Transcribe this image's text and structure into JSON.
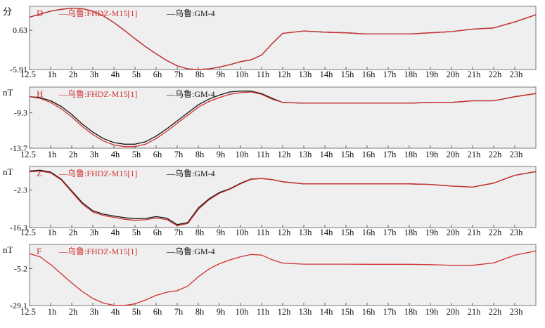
{
  "panels": [
    {
      "unit": "分",
      "component": "D",
      "legend": [
        {
          "prefix": "—",
          "text": "乌鲁:FHDZ-M15[1]",
          "color": "#d03030"
        },
        {
          "prefix": "—",
          "text": "乌鲁:GM-4",
          "color": "#111111"
        }
      ]
    },
    {
      "unit": "nT",
      "component": "H",
      "legend": [
        {
          "prefix": "—",
          "text": "乌鲁:FHDZ-M15[1]",
          "color": "#d03030"
        },
        {
          "prefix": "—",
          "text": "乌鲁:GM-4",
          "color": "#111111"
        }
      ]
    },
    {
      "unit": "nT",
      "component": "Z",
      "legend": [
        {
          "prefix": "—",
          "text": "乌鲁:FHDZ-M15[1]",
          "color": "#d03030"
        },
        {
          "prefix": "—",
          "text": "乌鲁:GM-4",
          "color": "#111111"
        }
      ]
    },
    {
      "unit": "nT",
      "component": "F",
      "legend": [
        {
          "prefix": "—",
          "text": "乌鲁:FHDZ-M15[1]",
          "color": "#d03030"
        },
        {
          "prefix": "—",
          "text": "乌鲁:GM-4",
          "color": "#111111"
        }
      ]
    }
  ],
  "chart_data": [
    {
      "type": "line",
      "title": "",
      "xlabel": "",
      "ylabel": "分",
      "x_ticks": [
        "12.5",
        "1h",
        "2h",
        "3h",
        "4h",
        "5h",
        "6h",
        "7h",
        "8h",
        "9h",
        "10h",
        "11h",
        "12h",
        "13h",
        "14h",
        "15h",
        "16h",
        "17h",
        "18h",
        "19h",
        "20h",
        "21h",
        "22h",
        "23h"
      ],
      "xlim": [
        0,
        24
      ],
      "y_ticks": [
        0.63,
        -5.91
      ],
      "ylim": [
        -5.91,
        4.6
      ],
      "grid": false,
      "legend_position": "top-left",
      "colors": {
        "red": "#d03030",
        "black": "#111111"
      },
      "series": [
        {
          "name": "乌鲁:FHDZ-M15[1]",
          "color": "#d03030",
          "x": [
            0,
            0.5,
            1,
            1.5,
            2,
            2.5,
            3,
            3.5,
            4,
            4.5,
            5,
            5.5,
            6,
            6.5,
            7,
            7.5,
            8,
            8.5,
            9,
            9.5,
            10,
            10.5,
            11,
            11.5,
            12,
            13,
            14,
            15,
            16,
            17,
            18,
            19,
            20,
            21,
            22,
            23,
            24
          ],
          "y": [
            2.8,
            3.3,
            3.8,
            4.1,
            4.3,
            4.2,
            3.8,
            3.0,
            1.9,
            0.6,
            -0.8,
            -2.1,
            -3.3,
            -4.4,
            -5.3,
            -5.8,
            -5.9,
            -5.8,
            -5.5,
            -5.1,
            -4.6,
            -4.3,
            -3.5,
            -1.6,
            0.1,
            0.5,
            0.3,
            0.2,
            0.0,
            0.0,
            0.0,
            0.2,
            0.4,
            0.8,
            1.0,
            2.0,
            3.2
          ]
        },
        {
          "name": "乌鲁:GM-4",
          "color": "#111111",
          "x": [
            0,
            0.5,
            1,
            1.5,
            2,
            2.5,
            3,
            3.5,
            4,
            4.5,
            5,
            5.5,
            6,
            6.5,
            7,
            7.5,
            8,
            8.5,
            9,
            9.5,
            10,
            10.5,
            11,
            11.5,
            12,
            13,
            14,
            15,
            16,
            17,
            18,
            19,
            20,
            21,
            22,
            23,
            24
          ],
          "y": [
            2.8,
            3.3,
            3.8,
            4.1,
            4.3,
            4.2,
            3.8,
            3.0,
            1.9,
            0.6,
            -0.8,
            -2.1,
            -3.3,
            -4.4,
            -5.3,
            -5.8,
            -5.9,
            -5.8,
            -5.5,
            -5.1,
            -4.6,
            -4.3,
            -3.5,
            -1.6,
            0.1,
            0.5,
            0.3,
            0.2,
            0.0,
            0.0,
            0.0,
            0.2,
            0.4,
            0.8,
            1.0,
            2.0,
            3.2
          ]
        }
      ]
    },
    {
      "type": "line",
      "title": "",
      "xlabel": "",
      "ylabel": "nT",
      "x_ticks": [
        "12.5",
        "1h",
        "2h",
        "3h",
        "4h",
        "5h",
        "6h",
        "7h",
        "8h",
        "9h",
        "10h",
        "11h",
        "12h",
        "13h",
        "14h",
        "15h",
        "16h",
        "17h",
        "18h",
        "19h",
        "20h",
        "21h",
        "22h",
        "23h"
      ],
      "xlim": [
        0,
        24
      ],
      "y_ticks": [
        -9.3,
        -13.7
      ],
      "ylim": [
        -13.7,
        -6.1
      ],
      "grid": false,
      "legend_position": "top-left",
      "colors": {
        "red": "#d03030",
        "black": "#111111"
      },
      "series": [
        {
          "name": "乌鲁:FHDZ-M15[1]",
          "color": "#d03030",
          "x": [
            0,
            0.5,
            1,
            1.5,
            2,
            2.5,
            3,
            3.5,
            4,
            4.5,
            5,
            5.5,
            6,
            6.5,
            7,
            7.5,
            8,
            8.5,
            9,
            9.5,
            10,
            10.5,
            11,
            11.5,
            12,
            13,
            14,
            15,
            16,
            17,
            18,
            19,
            20,
            21,
            22,
            23,
            24
          ],
          "y": [
            -7.3,
            -7.5,
            -8.0,
            -8.8,
            -9.8,
            -11.0,
            -12.0,
            -12.8,
            -13.3,
            -13.5,
            -13.5,
            -13.2,
            -12.5,
            -11.6,
            -10.6,
            -9.6,
            -8.6,
            -7.9,
            -7.4,
            -7.0,
            -6.8,
            -6.7,
            -7.0,
            -7.6,
            -8.0,
            -8.1,
            -8.1,
            -8.1,
            -8.1,
            -8.1,
            -8.1,
            -8.0,
            -8.0,
            -7.8,
            -7.8,
            -7.3,
            -6.9
          ]
        },
        {
          "name": "乌鲁:GM-4",
          "color": "#111111",
          "x": [
            0,
            0.5,
            1,
            1.5,
            2,
            2.5,
            3,
            3.5,
            4,
            4.5,
            5,
            5.5,
            6,
            6.5,
            7,
            7.5,
            8,
            8.5,
            9,
            9.5,
            10,
            10.5,
            11,
            11.5,
            12,
            13,
            14,
            15,
            16,
            17,
            18,
            19,
            20,
            21,
            22,
            23,
            24
          ],
          "y": [
            -7.3,
            -7.4,
            -7.8,
            -8.5,
            -9.5,
            -10.7,
            -11.7,
            -12.5,
            -13.0,
            -13.2,
            -13.2,
            -12.9,
            -12.2,
            -11.3,
            -10.3,
            -9.3,
            -8.3,
            -7.6,
            -7.1,
            -6.7,
            -6.6,
            -6.6,
            -6.9,
            -7.5,
            -8.0,
            -8.1,
            -8.1,
            -8.1,
            -8.1,
            -8.1,
            -8.1,
            -8.0,
            -8.0,
            -7.8,
            -7.8,
            -7.3,
            -6.9
          ]
        }
      ]
    },
    {
      "type": "line",
      "title": "",
      "xlabel": "",
      "ylabel": "nT",
      "x_ticks": [
        "12.5",
        "1h",
        "2h",
        "3h",
        "4h",
        "5h",
        "6h",
        "7h",
        "8h",
        "9h",
        "10h",
        "11h",
        "12h",
        "13h",
        "14h",
        "15h",
        "16h",
        "17h",
        "18h",
        "19h",
        "20h",
        "21h",
        "22h",
        "23h"
      ],
      "xlim": [
        0,
        24
      ],
      "y_ticks": [
        -2.3,
        -16.3
      ],
      "ylim": [
        -16.3,
        6.5
      ],
      "grid": false,
      "legend_position": "top-left",
      "colors": {
        "red": "#d03030",
        "black": "#111111"
      },
      "series": [
        {
          "name": "乌鲁:FHDZ-M15[1]",
          "color": "#d03030",
          "x": [
            0,
            0.5,
            1,
            1.5,
            2,
            2.5,
            3,
            3.5,
            4,
            4.5,
            5,
            5.5,
            6,
            6.5,
            7,
            7.5,
            8,
            8.5,
            9,
            9.5,
            10,
            10.5,
            11,
            11.5,
            12,
            13,
            14,
            15,
            16,
            17,
            18,
            19,
            20,
            21,
            22,
            23,
            24
          ],
          "y": [
            4.5,
            4.8,
            4.1,
            1.5,
            -3.0,
            -7.5,
            -10.5,
            -11.8,
            -12.5,
            -13.2,
            -13.6,
            -13.4,
            -12.7,
            -13.3,
            -15.6,
            -14.8,
            -9.5,
            -6.0,
            -3.5,
            -2.0,
            0.0,
            1.7,
            2.0,
            1.6,
            0.8,
            0.0,
            0.0,
            0.0,
            0.0,
            0.0,
            0.0,
            -0.2,
            -0.8,
            -1.2,
            0.3,
            3.2,
            4.6
          ]
        },
        {
          "name": "乌鲁:GM-4",
          "color": "#111111",
          "x": [
            0,
            0.5,
            1,
            1.5,
            2,
            2.5,
            3,
            3.5,
            4,
            4.5,
            5,
            5.5,
            6,
            6.5,
            7,
            7.5,
            8,
            8.5,
            9,
            9.5,
            10,
            10.5,
            11,
            11.5,
            12,
            13,
            14,
            15,
            16,
            17,
            18,
            19,
            20,
            21,
            22,
            23,
            24
          ],
          "y": [
            4.8,
            5.1,
            4.4,
            1.8,
            -2.6,
            -7.0,
            -10.0,
            -11.3,
            -12.0,
            -12.6,
            -13.0,
            -12.9,
            -12.2,
            -12.8,
            -15.2,
            -14.4,
            -9.0,
            -5.6,
            -3.2,
            -1.8,
            0.2,
            1.8,
            2.0,
            1.6,
            0.8,
            0.0,
            0.0,
            0.0,
            0.0,
            0.0,
            0.0,
            -0.2,
            -0.8,
            -1.2,
            0.3,
            3.2,
            4.6
          ]
        }
      ]
    },
    {
      "type": "line",
      "title": "",
      "xlabel": "",
      "ylabel": "nT",
      "x_ticks": [
        "12.5",
        "1h",
        "2h",
        "3h",
        "4h",
        "5h",
        "6h",
        "7h",
        "8h",
        "9h",
        "10h",
        "11h",
        "12h",
        "13h",
        "14h",
        "15h",
        "16h",
        "17h",
        "18h",
        "19h",
        "20h",
        "21h",
        "22h",
        "23h"
      ],
      "xlim": [
        0,
        24
      ],
      "y_ticks": [
        -5.2,
        -29.1
      ],
      "ylim": [
        -29.1,
        10.5
      ],
      "grid": false,
      "legend_position": "top-left",
      "colors": {
        "red": "#d03030",
        "black": "#111111"
      },
      "series": [
        {
          "name": "乌鲁:FHDZ-M15[1]",
          "color": "#d03030",
          "x": [
            0,
            0.5,
            1,
            1.5,
            2,
            2.5,
            3,
            3.5,
            4,
            4.5,
            5,
            5.5,
            6,
            6.5,
            7,
            7.5,
            8,
            8.5,
            9,
            9.5,
            10,
            10.5,
            11,
            11.5,
            12,
            13,
            14,
            15,
            16,
            17,
            18,
            19,
            20,
            21,
            22,
            23,
            24
          ],
          "y": [
            4.5,
            2.5,
            -2.5,
            -8.5,
            -14.5,
            -20.0,
            -24.5,
            -27.5,
            -29.0,
            -29.0,
            -28.0,
            -25.5,
            -22.5,
            -20.5,
            -19.5,
            -16.5,
            -10.5,
            -5.5,
            -2.0,
            0.5,
            2.5,
            4.0,
            3.6,
            0.6,
            -1.6,
            -2.3,
            -2.3,
            -2.3,
            -2.4,
            -2.4,
            -2.4,
            -2.6,
            -3.0,
            -3.0,
            -1.5,
            3.5,
            6.3
          ]
        },
        {
          "name": "乌鲁:GM-4",
          "color": "#111111",
          "x": [],
          "y": []
        }
      ]
    }
  ]
}
